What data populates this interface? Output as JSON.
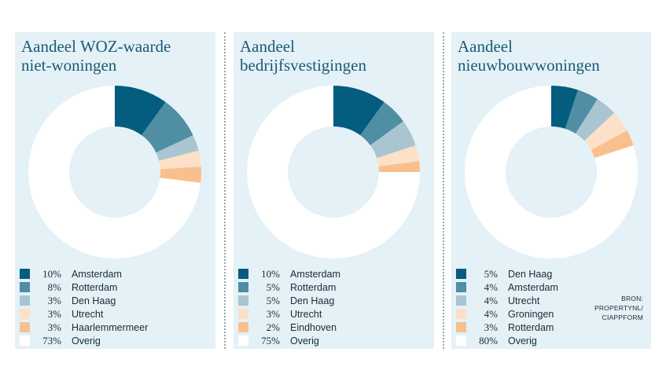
{
  "colors": {
    "panel_bg": "#e4f1f7",
    "title": "#1b5a76",
    "segments": [
      "#045c7f",
      "#4f8ea3",
      "#a9c5d1",
      "#fde0c8",
      "#f9c08d",
      "#ffffff"
    ]
  },
  "chart_data": [
    {
      "type": "pie",
      "variant": "donut",
      "title_lines": [
        "Aandeel WOZ-waarde",
        "niet-woningen"
      ],
      "slices": [
        {
          "label": "Amsterdam",
          "value": 10,
          "value_label": "10%"
        },
        {
          "label": "Rotterdam",
          "value": 8,
          "value_label": "8%"
        },
        {
          "label": "Den Haag",
          "value": 3,
          "value_label": "3%"
        },
        {
          "label": "Utrecht",
          "value": 3,
          "value_label": "3%"
        },
        {
          "label": "Haarlemmermeer",
          "value": 3,
          "value_label": "3%"
        },
        {
          "label": "Overig",
          "value": 73,
          "value_label": "73%"
        }
      ],
      "legend": "bottom"
    },
    {
      "type": "pie",
      "variant": "donut",
      "title_lines": [
        "Aandeel",
        "bedrijfsvestigingen"
      ],
      "slices": [
        {
          "label": "Amsterdam",
          "value": 10,
          "value_label": "10%"
        },
        {
          "label": "Rotterdam",
          "value": 5,
          "value_label": "5%"
        },
        {
          "label": "Den Haag",
          "value": 5,
          "value_label": "5%"
        },
        {
          "label": "Utrecht",
          "value": 3,
          "value_label": "3%"
        },
        {
          "label": "Eindhoven",
          "value": 2,
          "value_label": "2%"
        },
        {
          "label": "Overig",
          "value": 75,
          "value_label": "75%"
        }
      ],
      "legend": "bottom"
    },
    {
      "type": "pie",
      "variant": "donut",
      "title_lines": [
        "Aandeel",
        "nieuwbouwwoningen"
      ],
      "slices": [
        {
          "label": "Den Haag",
          "value": 5,
          "value_label": "5%"
        },
        {
          "label": "Amsterdam",
          "value": 4,
          "value_label": "4%"
        },
        {
          "label": "Utrecht",
          "value": 4,
          "value_label": "4%"
        },
        {
          "label": "Groningen",
          "value": 4,
          "value_label": "4%"
        },
        {
          "label": "Rotterdam",
          "value": 3,
          "value_label": "3%"
        },
        {
          "label": "Overig",
          "value": 80,
          "value_label": "80%"
        }
      ],
      "legend": "bottom"
    }
  ],
  "source_lines": [
    "BRON:",
    "PROPERTYNL/",
    "CIAPPFORM"
  ]
}
